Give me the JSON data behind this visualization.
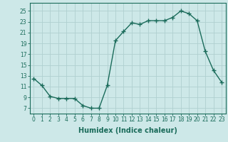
{
  "x": [
    0,
    1,
    2,
    3,
    4,
    5,
    6,
    7,
    8,
    9,
    10,
    11,
    12,
    13,
    14,
    15,
    16,
    17,
    18,
    19,
    20,
    21,
    22,
    23
  ],
  "y": [
    12.5,
    11.2,
    9.2,
    8.8,
    8.8,
    8.8,
    7.5,
    7.0,
    7.0,
    11.2,
    19.5,
    21.2,
    22.8,
    22.5,
    23.2,
    23.2,
    23.2,
    23.8,
    25.0,
    24.5,
    23.2,
    17.5,
    14.0,
    11.8
  ],
  "line_color": "#1a6b5a",
  "marker": "+",
  "marker_size": 4,
  "bg_color": "#cde8e8",
  "grid_color": "#b0d0d0",
  "xlabel": "Humidex (Indice chaleur)",
  "ylabel_ticks": [
    7,
    9,
    11,
    13,
    15,
    17,
    19,
    21,
    23,
    25
  ],
  "ylim": [
    6.0,
    26.5
  ],
  "xlim": [
    -0.5,
    23.5
  ],
  "xticks": [
    0,
    1,
    2,
    3,
    4,
    5,
    6,
    7,
    8,
    9,
    10,
    11,
    12,
    13,
    14,
    15,
    16,
    17,
    18,
    19,
    20,
    21,
    22,
    23
  ],
  "axis_color": "#1a6b5a",
  "tick_color": "#1a6b5a",
  "label_color": "#1a6b5a",
  "tick_fontsize": 5.5,
  "xlabel_fontsize": 7.0,
  "linewidth": 1.0
}
